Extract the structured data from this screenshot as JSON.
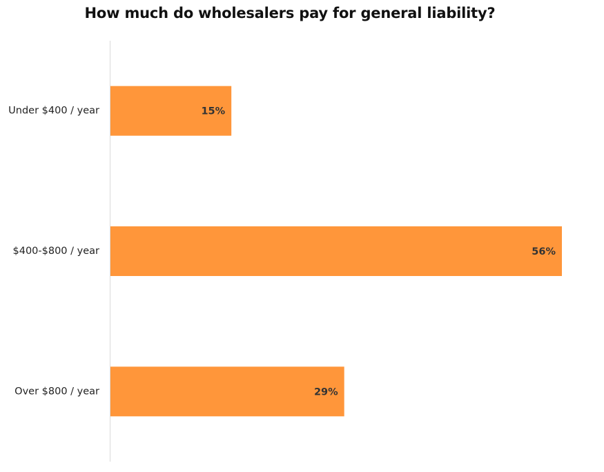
{
  "chart_data": {
    "type": "bar",
    "orientation": "horizontal",
    "title": "How much do wholesalers pay for general liability?",
    "categories": [
      "Under $400 / year",
      "$400-$800 / year",
      "Over $800 / year"
    ],
    "values": [
      15,
      56,
      29
    ],
    "value_labels": [
      "15%",
      "56%",
      "29%"
    ],
    "unit": "%",
    "xlim": [
      0,
      56
    ],
    "grid": false,
    "legend": "none",
    "colors": {
      "bar": "#FF963A",
      "axis": "#D9D9D9"
    }
  }
}
